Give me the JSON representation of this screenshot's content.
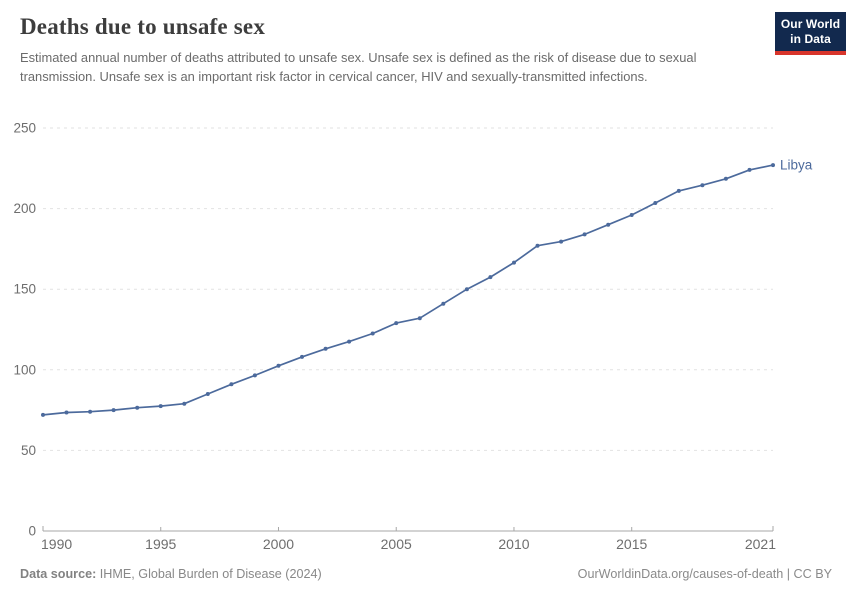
{
  "header": {
    "title": "Deaths due to unsafe sex",
    "subtitle": "Estimated annual number of deaths attributed to unsafe sex. Unsafe sex is defined as the risk of disease due to sexual transmission. Unsafe sex is an important risk factor in cervical cancer, HIV and sexually-transmitted infections.",
    "logo": {
      "line1": "Our World",
      "line2": "in Data"
    }
  },
  "chart_data": {
    "type": "line",
    "title": "Deaths due to unsafe sex",
    "x": [
      1990,
      1991,
      1992,
      1993,
      1994,
      1995,
      1996,
      1997,
      1998,
      1999,
      2000,
      2001,
      2002,
      2003,
      2004,
      2005,
      2006,
      2007,
      2008,
      2009,
      2010,
      2011,
      2012,
      2013,
      2014,
      2015,
      2016,
      2017,
      2018,
      2019,
      2020,
      2021
    ],
    "series": [
      {
        "name": "Libya",
        "color": "#4c6a9c",
        "values": [
          72,
          73.5,
          74,
          75,
          76.5,
          77.5,
          79,
          85,
          91,
          96.5,
          102.5,
          108,
          113,
          117.5,
          122.5,
          129,
          132,
          141,
          150,
          157.5,
          166.5,
          177,
          179.5,
          184,
          190,
          196,
          203.5,
          211,
          214.5,
          218.5,
          224,
          227
        ]
      }
    ],
    "xlabel": "",
    "ylabel": "",
    "ylim": [
      0,
      250
    ],
    "xlim": [
      1990,
      2021
    ],
    "y_ticks": [
      0,
      50,
      100,
      150,
      200,
      250
    ],
    "x_ticks": [
      1990,
      1995,
      2000,
      2005,
      2010,
      2015,
      2021
    ],
    "grid": "horizontal-dashed",
    "legend_position": "end-of-line-label",
    "end_label": "Libya",
    "colors": {
      "line": "#4c6a9c",
      "gridline": "#e2e2e2",
      "axis": "#a7a7a7",
      "tick_label": "#6e6e6e"
    }
  },
  "footer": {
    "source_label": "Data source:",
    "source_text": " IHME, Global Burden of Disease (2024)",
    "link_text": "OurWorldinData.org/causes-of-death | CC BY"
  }
}
